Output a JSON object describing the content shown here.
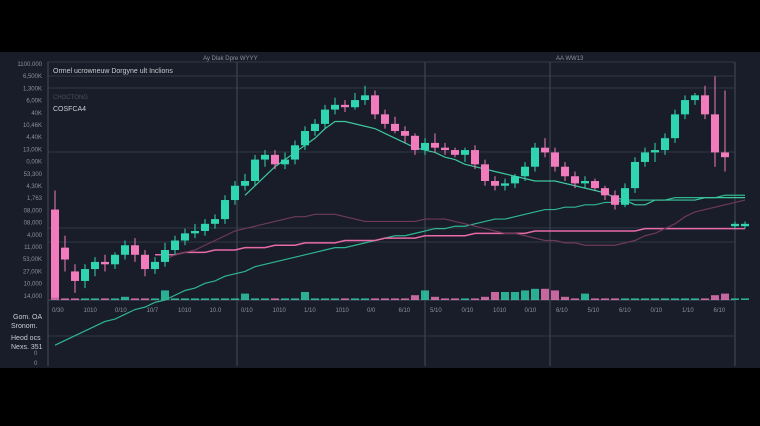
{
  "header": {
    "title_left": "Ay Dlak Dpre WYYY",
    "title_right": "AA WW13"
  },
  "panel": {
    "title": "Ormel ucrowneuw  Dorgyne ult Inclions",
    "subtitle": "CHOCTONG",
    "label": "COSFCA4"
  },
  "bottom_panel": {
    "labels": [
      "Gom. OA",
      "Sronom.",
      "Heod ocs",
      "Nexs. 351"
    ],
    "ticks": [
      "0",
      "0"
    ]
  },
  "colors": {
    "background": "#181d29",
    "up": "#2fd5b0",
    "down": "#f27bbd",
    "ma_slow": "#2fb590",
    "ma_fast": "#3fc79d",
    "trend": "#e86aa8",
    "ma_purple": "#6e3a5a",
    "grid": "#3a3f4b"
  },
  "chart_data": {
    "type": "candlestick",
    "title": "",
    "y_tick_labels": [
      "1100.000",
      "6,500K",
      "1,300K",
      "6,00K",
      "40K",
      "10,46K",
      "4,40K",
      "13,00K",
      "0,00K",
      "53,300",
      "4,30K",
      "1,763",
      "08,000",
      "08,000",
      "4,000",
      "11,000",
      "53,00K",
      "27,00K",
      "10,000",
      "14,000"
    ],
    "x_tick_labels": [
      "0/30",
      "1010",
      "0/10",
      "10/7",
      "1010",
      "10.0",
      "0/10",
      "1010",
      "1/10",
      "1010",
      "0/0",
      "6/10",
      "5/10",
      "0/10",
      "1010",
      "0/10",
      "6/10",
      "5/10",
      "6/10",
      "0/10",
      "1/10",
      "6/10"
    ],
    "grid": true,
    "ohlc": [
      [
        38,
        46,
        1,
        1
      ],
      [
        22,
        27,
        12,
        17
      ],
      [
        12,
        15,
        3,
        8
      ],
      [
        8,
        15,
        5,
        13
      ],
      [
        13,
        18,
        10,
        16
      ],
      [
        16,
        19,
        12,
        15
      ],
      [
        15,
        20,
        13,
        19
      ],
      [
        19,
        25,
        17,
        23
      ],
      [
        23,
        26,
        16,
        19
      ],
      [
        19,
        21,
        10,
        13
      ],
      [
        13,
        18,
        11,
        16
      ],
      [
        16,
        24,
        14,
        21
      ],
      [
        21,
        27,
        19,
        25
      ],
      [
        25,
        30,
        23,
        28
      ],
      [
        28,
        32,
        26,
        29
      ],
      [
        29,
        34,
        27,
        32
      ],
      [
        32,
        36,
        30,
        34
      ],
      [
        34,
        44,
        32,
        42
      ],
      [
        42,
        50,
        40,
        48
      ],
      [
        48,
        53,
        46,
        50
      ],
      [
        50,
        61,
        48,
        59
      ],
      [
        59,
        63,
        56,
        61
      ],
      [
        61,
        63,
        55,
        57
      ],
      [
        57,
        62,
        55,
        59
      ],
      [
        59,
        67,
        57,
        65
      ],
      [
        65,
        73,
        63,
        71
      ],
      [
        71,
        76,
        69,
        74
      ],
      [
        74,
        82,
        72,
        80
      ],
      [
        80,
        85,
        78,
        82
      ],
      [
        82,
        84,
        79,
        81
      ],
      [
        81,
        87,
        80,
        84
      ],
      [
        84,
        90,
        82,
        86
      ],
      [
        86,
        88,
        76,
        78
      ],
      [
        78,
        80,
        72,
        74
      ],
      [
        74,
        77,
        70,
        71
      ],
      [
        71,
        73,
        66,
        69
      ],
      [
        69,
        70,
        61,
        63
      ],
      [
        63,
        68,
        61,
        66
      ],
      [
        66,
        70,
        62,
        64
      ],
      [
        64,
        66,
        61,
        63
      ],
      [
        63,
        64,
        60,
        61
      ],
      [
        61,
        64,
        58,
        63
      ],
      [
        63,
        65,
        55,
        57
      ],
      [
        57,
        59,
        48,
        50
      ],
      [
        50,
        52,
        46,
        48
      ],
      [
        48,
        51,
        46,
        49
      ],
      [
        49,
        53,
        47,
        52
      ],
      [
        52,
        58,
        50,
        56
      ],
      [
        56,
        66,
        54,
        64
      ],
      [
        64,
        68,
        60,
        62
      ],
      [
        62,
        64,
        54,
        56
      ],
      [
        56,
        58,
        50,
        52
      ],
      [
        52,
        54,
        47,
        49
      ],
      [
        49,
        52,
        47,
        50
      ],
      [
        50,
        51,
        46,
        47
      ],
      [
        47,
        48,
        42,
        44
      ],
      [
        44,
        46,
        38,
        40
      ],
      [
        40,
        49,
        39,
        47
      ],
      [
        47,
        60,
        45,
        58
      ],
      [
        58,
        64,
        56,
        62
      ],
      [
        62,
        66,
        58,
        63
      ],
      [
        63,
        70,
        61,
        68
      ],
      [
        68,
        80,
        66,
        78
      ],
      [
        78,
        86,
        76,
        84
      ],
      [
        84,
        87,
        82,
        86
      ],
      [
        86,
        90,
        76,
        78
      ],
      [
        78,
        94,
        56,
        62
      ],
      [
        62,
        88,
        54,
        60
      ],
      [
        31,
        33,
        30,
        32
      ],
      [
        31,
        33,
        30,
        32
      ]
    ],
    "volume": [
      4,
      1,
      1,
      1,
      1,
      1,
      1,
      2,
      1,
      1,
      1,
      6,
      1,
      1,
      1,
      1,
      1,
      1,
      1,
      4,
      1,
      1,
      1,
      1,
      1,
      5,
      1,
      1,
      1,
      1,
      1,
      1,
      1,
      1,
      1,
      1,
      3,
      6,
      2,
      1,
      1,
      1,
      1,
      2,
      5,
      5,
      5,
      6,
      7,
      7,
      6,
      2,
      1,
      4,
      1,
      1,
      1,
      1,
      1,
      1,
      1,
      1,
      1,
      1,
      1,
      1,
      3,
      4,
      1,
      1
    ],
    "ma_slow": [
      -19,
      -17,
      -15,
      -13,
      -11,
      -9,
      -8,
      -6,
      -4,
      -3,
      -1,
      0,
      2,
      4,
      5,
      7,
      8,
      10,
      11,
      12,
      14,
      15,
      16,
      17,
      18,
      19,
      20,
      21,
      22,
      22,
      23,
      24,
      25,
      26,
      27,
      27,
      28,
      29,
      30,
      30,
      31,
      31,
      32,
      33,
      34,
      34,
      35,
      36,
      37,
      38,
      38,
      39,
      39,
      40,
      40,
      41,
      41,
      42,
      42,
      42,
      42,
      42,
      43,
      43,
      43,
      43,
      43,
      44,
      44,
      44
    ],
    "ma_fast": [
      null,
      null,
      null,
      null,
      null,
      null,
      null,
      null,
      null,
      null,
      null,
      null,
      null,
      null,
      null,
      null,
      null,
      null,
      null,
      44,
      48,
      52,
      56,
      59,
      62,
      65,
      68,
      72,
      75,
      75,
      74,
      73,
      72,
      70,
      68,
      66,
      64,
      63,
      62,
      60,
      59,
      57,
      56,
      55,
      54,
      53,
      52,
      51,
      50,
      50,
      50,
      49,
      48,
      47,
      46,
      45,
      43,
      42,
      40,
      40,
      42,
      42,
      42,
      42,
      42,
      43,
      43,
      43,
      43,
      43
    ],
    "trend": [
      null,
      null,
      null,
      null,
      null,
      null,
      null,
      null,
      null,
      null,
      19,
      19,
      19,
      20,
      20,
      20,
      21,
      21,
      21,
      22,
      22,
      22,
      23,
      23,
      23,
      24,
      24,
      24,
      24,
      25,
      25,
      25,
      25,
      26,
      26,
      26,
      26,
      27,
      27,
      27,
      27,
      27,
      28,
      28,
      28,
      28,
      28,
      28,
      29,
      29,
      29,
      29,
      29,
      29,
      29,
      29,
      29,
      29,
      29,
      30,
      30,
      30,
      30,
      30,
      30,
      30,
      30,
      30,
      30,
      30
    ],
    "ma_purple": [
      null,
      null,
      null,
      null,
      null,
      null,
      null,
      null,
      null,
      null,
      null,
      17,
      19,
      20,
      21,
      23,
      25,
      27,
      29,
      30,
      31,
      32,
      33,
      34,
      35,
      35,
      36,
      36,
      36,
      35,
      34,
      33,
      33,
      33,
      33,
      33,
      33,
      34,
      34,
      34,
      33,
      32,
      31,
      30,
      29,
      28,
      28,
      27,
      26,
      25,
      25,
      24,
      24,
      23,
      23,
      23,
      23,
      24,
      25,
      27,
      28,
      30,
      32,
      35,
      37,
      38,
      39,
      40,
      41,
      42
    ]
  }
}
